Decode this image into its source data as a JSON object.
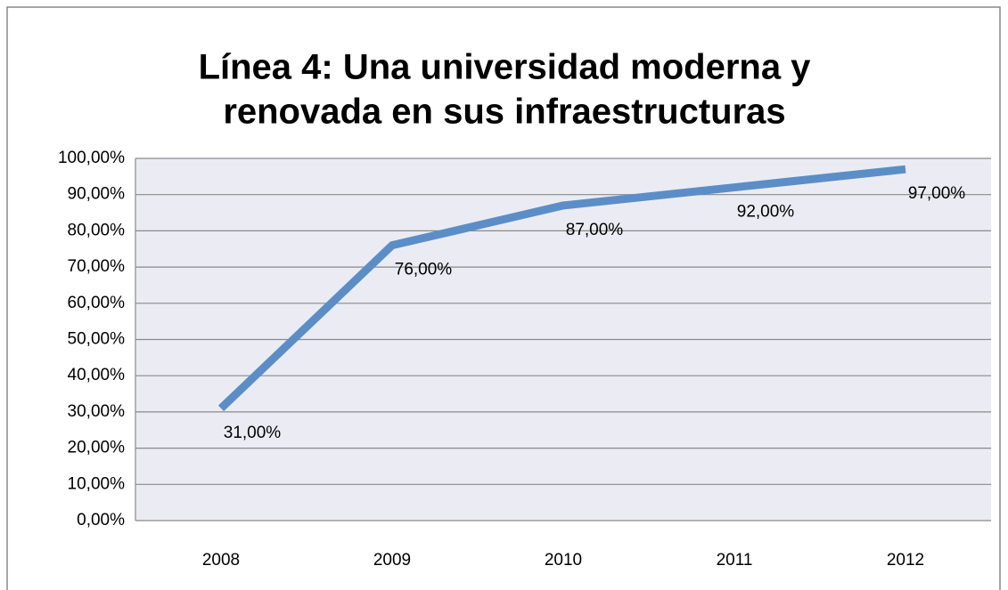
{
  "chart_data": {
    "type": "line",
    "title": [
      "Línea 4: Una universidad moderna y",
      "renovada en sus infraestructuras"
    ],
    "categories": [
      "2008",
      "2009",
      "2010",
      "2011",
      "2012"
    ],
    "series": [
      {
        "color": "#5b8ec6",
        "values": [
          31,
          76,
          87,
          92,
          97
        ],
        "value_labels": [
          "31,00%",
          "76,00%",
          "87,00%",
          "92,00%",
          "97,00%"
        ]
      }
    ],
    "ylim": [
      0,
      100
    ],
    "yticks": [
      {
        "value": 0,
        "label": "0,00%"
      },
      {
        "value": 10,
        "label": "10,00%"
      },
      {
        "value": 20,
        "label": "20,00%"
      },
      {
        "value": 30,
        "label": "30,00%"
      },
      {
        "value": 40,
        "label": "40,00%"
      },
      {
        "value": 50,
        "label": "50,00%"
      },
      {
        "value": 60,
        "label": "60,00%"
      },
      {
        "value": 70,
        "label": "70,00%"
      },
      {
        "value": 80,
        "label": "80,00%"
      },
      {
        "value": 90,
        "label": "90,00%"
      },
      {
        "value": 100,
        "label": "100,00%"
      }
    ],
    "grid": true
  }
}
